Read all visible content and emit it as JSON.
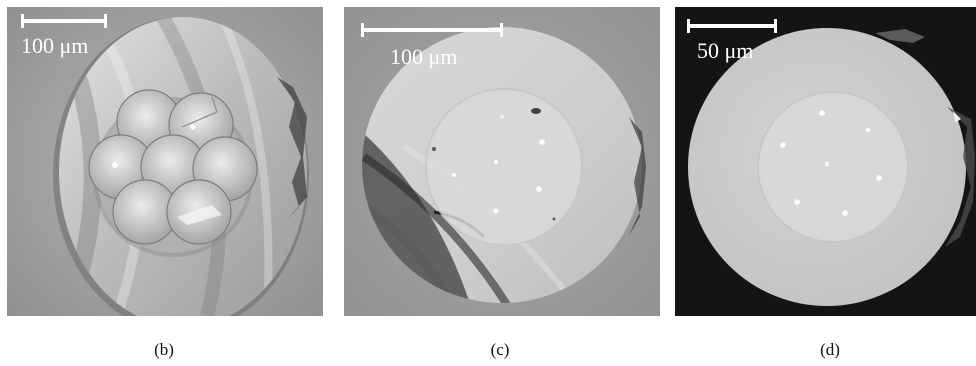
{
  "panels": [
    {
      "id": "b",
      "scalebar_label": "100 μm",
      "caption": "(b)"
    },
    {
      "id": "c",
      "scalebar_label": "100 μm",
      "caption": "(c)"
    },
    {
      "id": "d",
      "scalebar_label": "50 μm",
      "caption": "(d)"
    }
  ],
  "colors": {
    "panel_b_background": "#a9a9a9",
    "panel_c_background": "#9b9b9b",
    "panel_d_background": "#141414",
    "fiber_face": "#c8c8c8",
    "scalebar": "#ffffff"
  }
}
